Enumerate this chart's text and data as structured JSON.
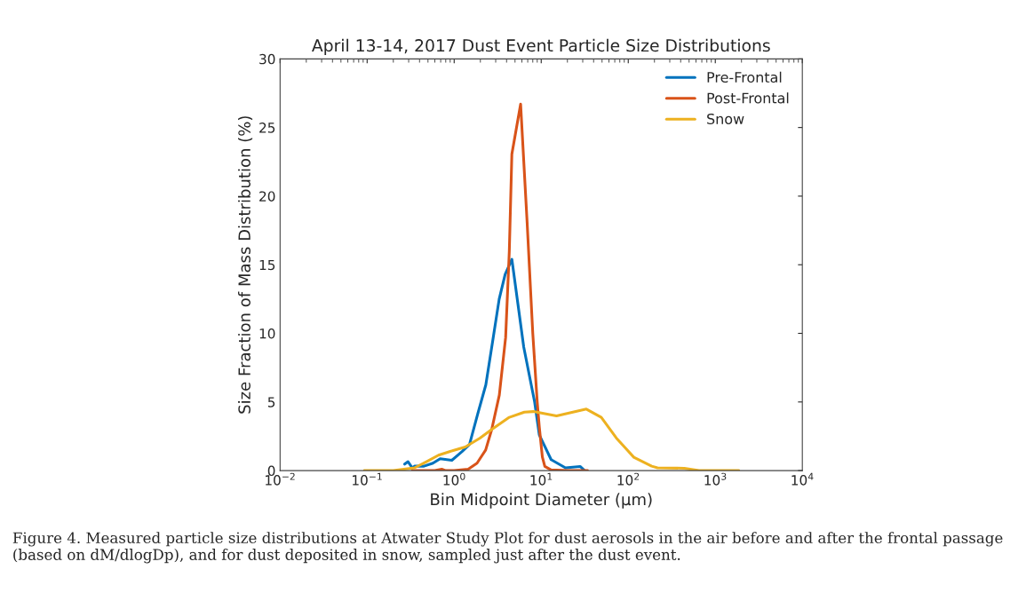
{
  "chart_data": {
    "type": "line",
    "title": "April 13-14, 2017 Dust Event Particle Size Distributions",
    "xlabel": "Bin Midpoint Diameter (µm)",
    "ylabel": "Size Fraction of Mass Distribution (%)",
    "log": "x",
    "xlim": [
      0.01,
      10000
    ],
    "ylim": [
      0,
      30
    ],
    "xticks": [
      {
        "value": 0.01,
        "label": "10$^{−2}$"
      },
      {
        "value": 0.1,
        "label": "10$^{−1}$"
      },
      {
        "value": 1,
        "label": "10$^{0}$"
      },
      {
        "value": 10,
        "label": "10$^{1}$"
      },
      {
        "value": 100,
        "label": "10$^{2}$"
      },
      {
        "value": 1000,
        "label": "10$^{3}$"
      },
      {
        "value": 10000,
        "label": "10$^{4}$"
      }
    ],
    "yticks": [
      0,
      5,
      10,
      15,
      20,
      25,
      30
    ],
    "grid": false,
    "legend": "top right",
    "marker": "none",
    "line_style": "solid",
    "series": [
      {
        "name": "Pre-Frontal",
        "color": "#0072bd",
        "x": [
          0.27,
          0.295,
          0.33,
          0.35,
          0.45,
          0.57,
          0.69,
          0.94,
          1.24,
          1.5,
          1.86,
          2.31,
          2.81,
          3.29,
          3.85,
          4.6,
          6.3,
          8.4,
          9.5,
          13,
          19,
          28,
          31.6
        ],
        "values": [
          0.47,
          0.65,
          0.2,
          0.32,
          0.32,
          0.54,
          0.86,
          0.75,
          1.4,
          1.9,
          4.1,
          6.25,
          9.7,
          12.5,
          14.3,
          15.4,
          9.0,
          5.0,
          2.6,
          0.8,
          0.2,
          0.3,
          0
        ]
      },
      {
        "name": "Post-Frontal",
        "color": "#d95319",
        "x": [
          0.33,
          0.6,
          0.72,
          0.8,
          1.0,
          1.2,
          1.45,
          1.83,
          2.3,
          2.7,
          3.3,
          3.9,
          4.3,
          4.6,
          5.8,
          6.9,
          8.0,
          9.0,
          9.5,
          10.3,
          11,
          13,
          20,
          34
        ],
        "values": [
          0,
          0,
          0.1,
          0,
          0,
          0.05,
          0.1,
          0.54,
          1.5,
          3,
          5.5,
          9.7,
          16,
          23.06,
          26.7,
          18,
          10,
          5,
          3.2,
          1.0,
          0.3,
          0.05,
          0,
          0
        ]
      },
      {
        "name": "Snow",
        "color": "#edb120",
        "x": [
          0.093,
          0.2,
          0.35,
          0.48,
          0.66,
          0.9,
          1.34,
          1.98,
          2.7,
          4.3,
          6.4,
          8.1,
          15,
          33,
          49,
          73,
          116,
          186,
          217,
          440,
          650,
          1860
        ],
        "values": [
          0,
          0,
          0.2,
          0.65,
          1.12,
          1.4,
          1.72,
          2.37,
          3.0,
          3.88,
          4.26,
          4.3,
          3.98,
          4.48,
          3.88,
          2.37,
          0.97,
          0.32,
          0.2,
          0.17,
          0,
          0
        ]
      }
    ],
    "annotations": [
      "Figure 4. Measured particle size distributions at Atwater Study Plot for dust aerosols in the air before and after the frontal passage (based on dM/dlogDp), and for dust deposited in snow, sampled just after the dust event."
    ]
  }
}
